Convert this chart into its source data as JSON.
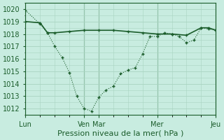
{
  "background_color": "#c8ece0",
  "grid_color": "#a8d4c0",
  "line_color": "#1a5c2a",
  "title": "Pression niveau de la mer( hPa )",
  "ylim": [
    1011.5,
    1020.5
  ],
  "yticks": [
    1012,
    1013,
    1014,
    1015,
    1016,
    1017,
    1018,
    1019,
    1020
  ],
  "day_labels": [
    "Lun",
    "Ven",
    "Mar",
    "Mer",
    "Jeu"
  ],
  "day_positions": [
    0,
    48,
    60,
    108,
    156
  ],
  "total_points": 156,
  "line1_x": [
    0,
    12,
    18,
    24,
    30,
    36,
    42,
    48,
    54,
    60,
    66,
    72,
    78,
    84,
    90,
    96,
    102,
    108,
    114,
    120,
    126,
    132,
    138,
    144,
    150,
    156
  ],
  "line1_y": [
    1019.9,
    1018.8,
    1018.1,
    1017.0,
    1016.1,
    1014.9,
    1013.0,
    1012.0,
    1011.8,
    1012.9,
    1013.5,
    1013.8,
    1014.8,
    1015.1,
    1015.3,
    1016.4,
    1017.8,
    1017.8,
    1018.1,
    1018.0,
    1017.8,
    1017.3,
    1017.5,
    1018.5,
    1018.4,
    1018.3
  ],
  "line2_x": [
    0,
    12,
    18,
    24,
    36,
    48,
    60,
    72,
    84,
    96,
    108,
    120,
    132,
    144,
    150,
    156
  ],
  "line2_y": [
    1019.0,
    1018.9,
    1018.1,
    1018.1,
    1018.2,
    1018.3,
    1018.3,
    1018.3,
    1018.2,
    1018.1,
    1018.0,
    1018.0,
    1017.9,
    1018.5,
    1018.5,
    1018.3
  ],
  "xlim": [
    0,
    156
  ],
  "xtick_minor_step": 12,
  "xlabel_fontsize": 8,
  "ylabel_fontsize": 7
}
